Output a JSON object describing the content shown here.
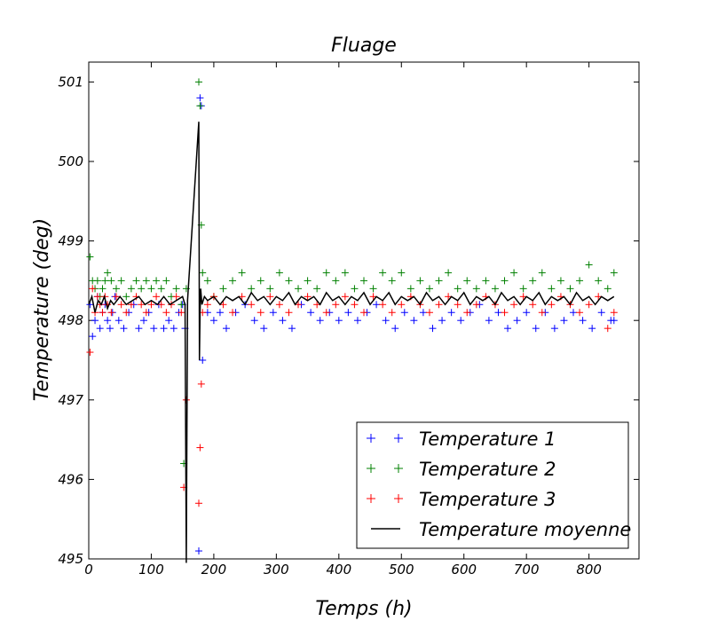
{
  "chart_data": {
    "type": "scatter",
    "title": "Fluage",
    "xlabel": "Temps (h)",
    "ylabel": "Temperature (deg)",
    "xlim": [
      0,
      880
    ],
    "ylim": [
      495,
      501.25
    ],
    "x_ticks": [
      0,
      100,
      200,
      300,
      400,
      500,
      600,
      700,
      800
    ],
    "y_ticks": [
      495,
      496,
      497,
      498,
      499,
      500,
      501
    ],
    "grid": false,
    "legend": {
      "position": "bottom-right",
      "entries": [
        "Temperature 1",
        "Temperature 2",
        "Temperature 3",
        "Temperature moyenne"
      ]
    },
    "series": [
      {
        "name": "Temperature 1",
        "type": "scatter",
        "marker": "+",
        "color": "#0000ff",
        "x": [
          2,
          6,
          10,
          14,
          18,
          22,
          26,
          30,
          34,
          38,
          42,
          48,
          56,
          64,
          72,
          80,
          88,
          96,
          104,
          112,
          120,
          128,
          136,
          144,
          150,
          154,
          176,
          178,
          180,
          182,
          190,
          200,
          210,
          220,
          235,
          250,
          265,
          280,
          295,
          310,
          325,
          340,
          355,
          370,
          385,
          400,
          415,
          430,
          445,
          460,
          475,
          490,
          505,
          520,
          535,
          550,
          565,
          580,
          595,
          610,
          625,
          640,
          655,
          670,
          685,
          700,
          715,
          730,
          745,
          760,
          775,
          790,
          805,
          820,
          835,
          840
        ],
        "y": [
          498.2,
          497.8,
          498.0,
          498.3,
          497.9,
          498.1,
          498.2,
          498.0,
          497.9,
          498.1,
          498.3,
          498.0,
          497.9,
          498.1,
          498.2,
          497.9,
          498.0,
          498.1,
          497.9,
          498.2,
          497.9,
          498.0,
          497.9,
          498.1,
          498.2,
          497.9,
          495.1,
          500.8,
          500.7,
          497.5,
          498.1,
          498.0,
          498.1,
          497.9,
          498.1,
          498.2,
          498.0,
          497.9,
          498.1,
          498.0,
          497.9,
          498.2,
          498.1,
          498.0,
          498.1,
          498.0,
          498.1,
          498.0,
          498.1,
          498.2,
          498.0,
          497.9,
          498.1,
          498.0,
          498.1,
          497.9,
          498.0,
          498.1,
          498.0,
          498.1,
          498.2,
          498.0,
          498.1,
          497.9,
          498.0,
          498.1,
          497.9,
          498.1,
          497.9,
          498.0,
          498.1,
          498.0,
          497.9,
          498.1,
          498.0,
          498.0
        ]
      },
      {
        "name": "Temperature 2",
        "type": "scatter",
        "marker": "+",
        "color": "#008000",
        "x": [
          2,
          6,
          10,
          14,
          18,
          22,
          26,
          30,
          36,
          44,
          52,
          60,
          68,
          76,
          84,
          92,
          100,
          108,
          116,
          124,
          132,
          140,
          148,
          152,
          156,
          176,
          178,
          180,
          182,
          190,
          200,
          215,
          230,
          245,
          260,
          275,
          290,
          305,
          320,
          335,
          350,
          365,
          380,
          395,
          410,
          425,
          440,
          455,
          470,
          485,
          500,
          515,
          530,
          545,
          560,
          575,
          590,
          605,
          620,
          635,
          650,
          665,
          680,
          695,
          710,
          725,
          740,
          755,
          770,
          785,
          800,
          815,
          830,
          840
        ],
        "y": [
          498.8,
          498.5,
          498.4,
          498.5,
          498.3,
          498.4,
          498.5,
          498.6,
          498.5,
          498.4,
          498.5,
          498.3,
          498.4,
          498.5,
          498.4,
          498.5,
          498.4,
          498.5,
          498.4,
          498.5,
          498.3,
          498.4,
          498.2,
          496.2,
          498.4,
          501.0,
          500.7,
          499.2,
          498.6,
          498.5,
          498.3,
          498.4,
          498.5,
          498.6,
          498.4,
          498.5,
          498.4,
          498.6,
          498.5,
          498.4,
          498.5,
          498.4,
          498.6,
          498.5,
          498.6,
          498.4,
          498.5,
          498.4,
          498.6,
          498.5,
          498.6,
          498.4,
          498.5,
          498.4,
          498.5,
          498.6,
          498.4,
          498.5,
          498.4,
          498.5,
          498.4,
          498.5,
          498.6,
          498.4,
          498.5,
          498.6,
          498.4,
          498.5,
          498.4,
          498.5,
          498.7,
          498.5,
          498.4,
          498.6
        ]
      },
      {
        "name": "Temperature 3",
        "type": "scatter",
        "marker": "+",
        "color": "#ff0000",
        "x": [
          2,
          6,
          10,
          14,
          18,
          22,
          26,
          30,
          36,
          44,
          52,
          60,
          68,
          76,
          84,
          92,
          100,
          108,
          116,
          124,
          132,
          140,
          148,
          152,
          156,
          176,
          178,
          180,
          182,
          190,
          200,
          215,
          230,
          245,
          260,
          275,
          290,
          305,
          320,
          335,
          350,
          365,
          380,
          395,
          410,
          425,
          440,
          455,
          470,
          485,
          500,
          515,
          530,
          545,
          560,
          575,
          590,
          605,
          620,
          635,
          650,
          665,
          680,
          695,
          710,
          725,
          740,
          755,
          770,
          785,
          800,
          815,
          830,
          840
        ],
        "y": [
          497.6,
          498.4,
          498.1,
          498.3,
          498.2,
          498.1,
          498.3,
          498.2,
          498.1,
          498.3,
          498.2,
          498.1,
          498.2,
          498.3,
          498.2,
          498.1,
          498.2,
          498.3,
          498.2,
          498.1,
          498.2,
          498.3,
          498.1,
          495.9,
          497.0,
          495.7,
          496.4,
          497.2,
          498.1,
          498.2,
          498.3,
          498.2,
          498.1,
          498.3,
          498.2,
          498.1,
          498.3,
          498.2,
          498.1,
          498.2,
          498.3,
          498.2,
          498.1,
          498.2,
          498.3,
          498.2,
          498.1,
          498.3,
          498.2,
          498.1,
          498.2,
          498.3,
          498.2,
          498.1,
          498.2,
          498.3,
          498.2,
          498.1,
          498.2,
          498.3,
          498.2,
          498.1,
          498.2,
          498.3,
          498.2,
          498.1,
          498.2,
          498.3,
          498.2,
          498.1,
          498.2,
          498.3,
          497.9,
          498.1
        ]
      },
      {
        "name": "Temperature moyenne",
        "type": "line",
        "color": "#000000",
        "x": [
          0,
          5,
          10,
          15,
          20,
          25,
          30,
          35,
          40,
          50,
          60,
          70,
          80,
          90,
          100,
          110,
          120,
          130,
          140,
          150,
          154,
          156,
          158,
          176,
          177,
          178,
          179,
          181,
          185,
          190,
          200,
          210,
          220,
          230,
          240,
          250,
          260,
          270,
          280,
          290,
          300,
          310,
          320,
          330,
          340,
          350,
          360,
          370,
          380,
          390,
          400,
          410,
          420,
          430,
          440,
          450,
          460,
          470,
          480,
          490,
          500,
          510,
          520,
          530,
          540,
          550,
          560,
          570,
          580,
          590,
          600,
          610,
          620,
          630,
          640,
          650,
          660,
          670,
          680,
          690,
          700,
          710,
          720,
          730,
          740,
          750,
          760,
          770,
          780,
          790,
          800,
          810,
          820,
          830,
          840
        ],
        "y": [
          498.2,
          498.3,
          498.1,
          498.25,
          498.2,
          498.3,
          498.15,
          498.25,
          498.2,
          498.3,
          498.2,
          498.25,
          498.3,
          498.2,
          498.25,
          498.2,
          498.3,
          498.2,
          498.25,
          498.3,
          498.2,
          494.95,
          498.25,
          500.5,
          497.5,
          498.1,
          498.4,
          498.2,
          498.3,
          498.25,
          498.3,
          498.2,
          498.3,
          498.25,
          498.3,
          498.2,
          498.35,
          498.25,
          498.3,
          498.2,
          498.3,
          498.25,
          498.35,
          498.2,
          498.3,
          498.25,
          498.3,
          498.2,
          498.35,
          498.25,
          498.3,
          498.2,
          498.3,
          498.25,
          498.35,
          498.2,
          498.3,
          498.25,
          498.35,
          498.2,
          498.3,
          498.25,
          498.3,
          498.2,
          498.35,
          498.25,
          498.3,
          498.2,
          498.3,
          498.25,
          498.35,
          498.2,
          498.3,
          498.25,
          498.3,
          498.2,
          498.35,
          498.25,
          498.3,
          498.2,
          498.3,
          498.25,
          498.35,
          498.2,
          498.3,
          498.25,
          498.3,
          498.2,
          498.35,
          498.25,
          498.3,
          498.2,
          498.3,
          498.25,
          498.3
        ]
      }
    ]
  }
}
